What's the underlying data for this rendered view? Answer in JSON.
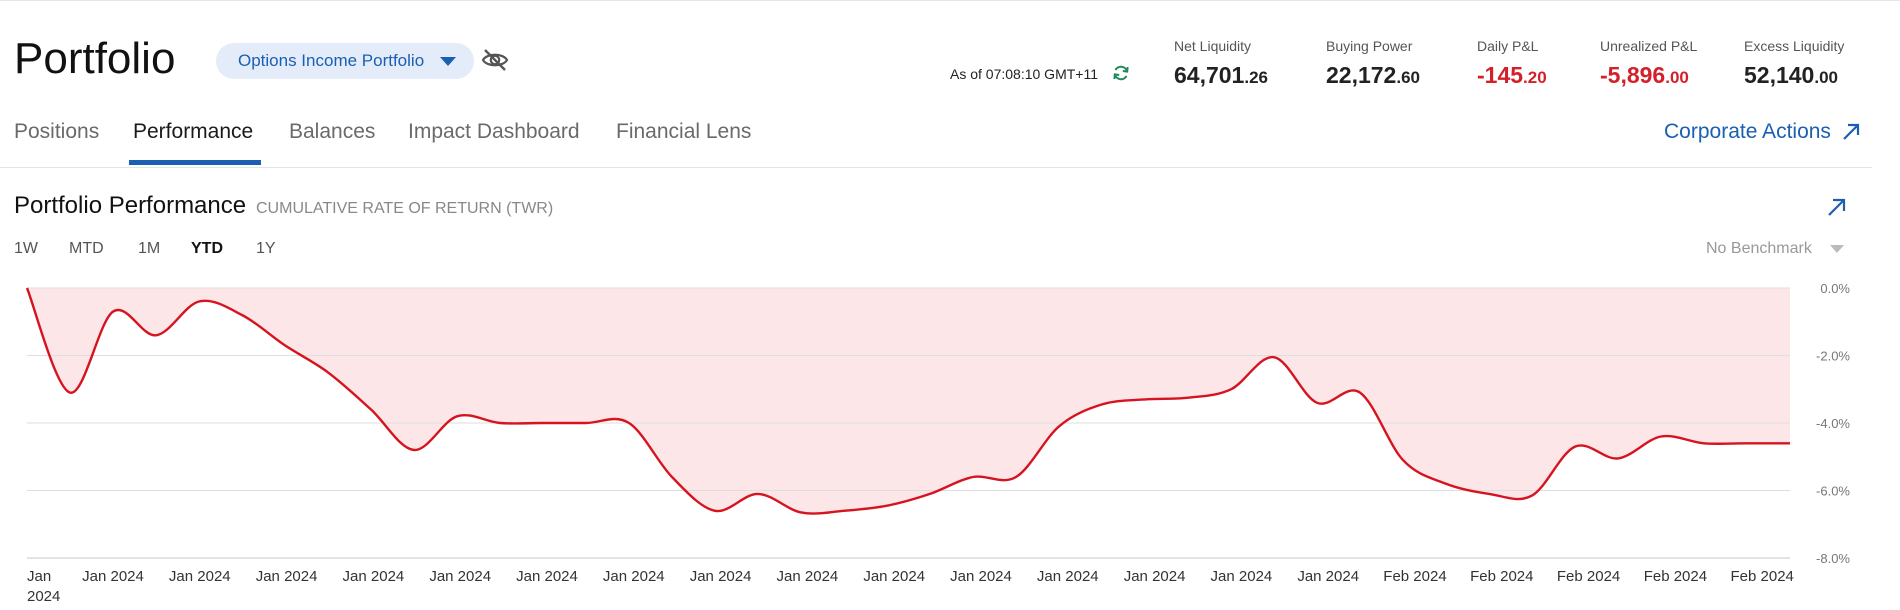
{
  "header": {
    "title": "Portfolio",
    "portfolio_selector": "Options Income Portfolio",
    "as_of": "As of 07:08:10 GMT+11"
  },
  "metrics": [
    {
      "label": "Net Liquidity",
      "main": "64,701",
      "cents": ".26",
      "tone": "neutral"
    },
    {
      "label": "Buying Power",
      "main": "22,172",
      "cents": ".60",
      "tone": "neutral"
    },
    {
      "label": "Daily P&L",
      "main": "-145",
      "cents": ".20",
      "tone": "negative"
    },
    {
      "label": "Unrealized P&L",
      "main": "-5,896",
      "cents": ".00",
      "tone": "negative"
    },
    {
      "label": "Excess Liquidity",
      "main": "52,140",
      "cents": ".00",
      "tone": "neutral"
    }
  ],
  "tabs": [
    {
      "label": "Positions",
      "active": false
    },
    {
      "label": "Performance",
      "active": true
    },
    {
      "label": "Balances",
      "active": false
    },
    {
      "label": "Impact Dashboard",
      "active": false
    },
    {
      "label": "Financial Lens",
      "active": false
    }
  ],
  "corporate_actions": "Corporate Actions",
  "section": {
    "title": "Portfolio Performance",
    "subtitle": "CUMULATIVE RATE OF RETURN (TWR)"
  },
  "ranges": [
    {
      "label": "1W",
      "active": false
    },
    {
      "label": "MTD",
      "active": false
    },
    {
      "label": "1M",
      "active": false
    },
    {
      "label": "YTD",
      "active": true
    },
    {
      "label": "1Y",
      "active": false
    }
  ],
  "benchmark": "No Benchmark",
  "colors": {
    "accent": "#1b5fb3",
    "negative": "#d3202a",
    "line": "#d6141f",
    "area": "#fde6e8"
  },
  "chart_data": {
    "type": "area",
    "ylim": [
      -8,
      0
    ],
    "y_ticks": [
      0,
      -2,
      -4,
      -6,
      -8
    ],
    "y_tick_labels": [
      "0.0%",
      "-2.0%",
      "-4.0%",
      "-6.0%",
      "-8.0%"
    ],
    "x_tick_labels": [
      "Jan 2024",
      "Jan 2024",
      "Jan 2024",
      "Jan 2024",
      "Jan 2024",
      "Jan 2024",
      "Jan 2024",
      "Jan 2024",
      "Jan 2024",
      "Jan 2024",
      "Jan 2024",
      "Jan 2024",
      "Jan 2024",
      "Jan 2024",
      "Jan 2024",
      "Jan 2024",
      "Feb 2024",
      "Feb 2024",
      "Feb 2024",
      "Feb 2024",
      "Feb 2024"
    ],
    "series": [
      {
        "values": [
          0.0,
          -3.1,
          -0.7,
          -1.4,
          -0.4,
          -0.8,
          -1.7,
          -2.5,
          -3.6,
          -4.8,
          -3.8,
          -4.0,
          -4.0,
          -4.0,
          -4.0,
          -5.6,
          -6.6,
          -6.1,
          -6.65,
          -6.6,
          -6.45,
          -6.1,
          -5.6,
          -5.6,
          -4.1,
          -3.45,
          -3.3,
          -3.25,
          -3.0,
          -2.05,
          -3.4,
          -3.1,
          -5.1,
          -5.8,
          -6.1,
          -6.15,
          -4.7,
          -5.05,
          -4.4,
          -4.6,
          -4.6,
          -4.6
        ]
      }
    ]
  }
}
